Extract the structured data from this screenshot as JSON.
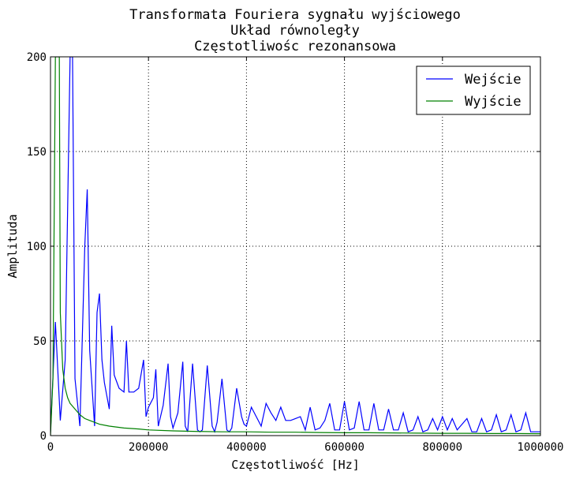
{
  "chart_data": {
    "type": "line",
    "title_lines": [
      "Transformata Fouriera sygnału wyjściowego",
      "Układ równoległy",
      "Częstotliwośc rezonansowa"
    ],
    "xlabel": "Częstotliwość [Hz]",
    "ylabel": "Amplituda",
    "xlim": [
      0,
      1000000
    ],
    "ylim": [
      0,
      200
    ],
    "xticks": [
      0,
      200000,
      400000,
      600000,
      800000,
      1000000
    ],
    "xtick_labels": [
      "0",
      "200000",
      "400000",
      "600000",
      "800000",
      "1000000"
    ],
    "yticks": [
      0,
      50,
      100,
      150,
      200
    ],
    "ytick_labels": [
      "0",
      "50",
      "100",
      "150",
      "200"
    ],
    "grid": true,
    "legend_position": "top-right",
    "series": [
      {
        "name": "Wejście",
        "color": "#0000ff",
        "x": [
          0,
          10000,
          20000,
          30000,
          40000,
          45000,
          50000,
          60000,
          70000,
          75000,
          80000,
          90000,
          95000,
          100000,
          105000,
          110000,
          120000,
          125000,
          130000,
          140000,
          150000,
          155000,
          160000,
          170000,
          180000,
          190000,
          195000,
          200000,
          210000,
          215000,
          220000,
          230000,
          240000,
          245000,
          250000,
          260000,
          270000,
          275000,
          280000,
          290000,
          300000,
          305000,
          310000,
          320000,
          330000,
          335000,
          340000,
          350000,
          360000,
          365000,
          370000,
          380000,
          390000,
          395000,
          400000,
          410000,
          420000,
          430000,
          440000,
          450000,
          460000,
          470000,
          480000,
          490000,
          500000,
          510000,
          520000,
          530000,
          540000,
          550000,
          560000,
          570000,
          580000,
          590000,
          600000,
          610000,
          620000,
          630000,
          640000,
          650000,
          660000,
          670000,
          680000,
          690000,
          700000,
          710000,
          720000,
          730000,
          740000,
          750000,
          760000,
          770000,
          780000,
          790000,
          800000,
          810000,
          820000,
          830000,
          840000,
          850000,
          860000,
          870000,
          880000,
          890000,
          900000,
          910000,
          920000,
          930000,
          940000,
          950000,
          960000,
          970000,
          980000,
          990000,
          1000000
        ],
        "values": [
          2,
          60,
          8,
          40,
          200,
          200,
          30,
          5,
          100,
          130,
          45,
          5,
          65,
          75,
          40,
          28,
          14,
          58,
          32,
          25,
          23,
          50,
          23,
          23,
          25,
          40,
          10,
          15,
          20,
          35,
          5,
          16,
          38,
          10,
          4,
          12,
          39,
          5,
          2,
          38,
          3,
          2,
          3,
          37,
          5,
          2,
          7,
          30,
          3,
          2,
          4,
          25,
          10,
          6,
          5,
          15,
          10,
          5,
          17,
          12,
          8,
          15,
          8,
          8,
          9,
          10,
          3,
          15,
          3,
          4,
          8,
          17,
          3,
          3,
          18,
          3,
          4,
          18,
          3,
          3,
          17,
          3,
          3,
          14,
          3,
          3,
          12,
          2,
          3,
          10,
          2,
          3,
          9,
          3,
          10,
          3,
          9,
          3,
          6,
          9,
          2,
          2,
          9,
          2,
          3,
          11,
          2,
          3,
          11,
          2,
          3,
          12,
          2,
          2,
          2
        ]
      },
      {
        "name": "Wyjście",
        "color": "#008000",
        "x": [
          0,
          5000,
          10000,
          12000,
          15000,
          18000,
          20000,
          25000,
          30000,
          35000,
          40000,
          50000,
          60000,
          70000,
          80000,
          100000,
          120000,
          150000,
          180000,
          200000,
          250000,
          300000,
          350000,
          400000,
          450000,
          500000,
          550000,
          600000,
          650000,
          700000,
          750000,
          800000,
          850000,
          900000,
          950000,
          1000000
        ],
        "values": [
          0,
          30,
          200,
          200,
          200,
          200,
          65,
          35,
          25,
          20,
          17,
          14,
          11,
          9,
          8,
          6,
          5,
          4,
          3.5,
          3,
          2.5,
          2.2,
          2,
          2,
          1.8,
          1.8,
          1.6,
          1.5,
          1.5,
          1.4,
          1.3,
          1.2,
          1.2,
          1.1,
          1.1,
          1
        ]
      }
    ]
  }
}
